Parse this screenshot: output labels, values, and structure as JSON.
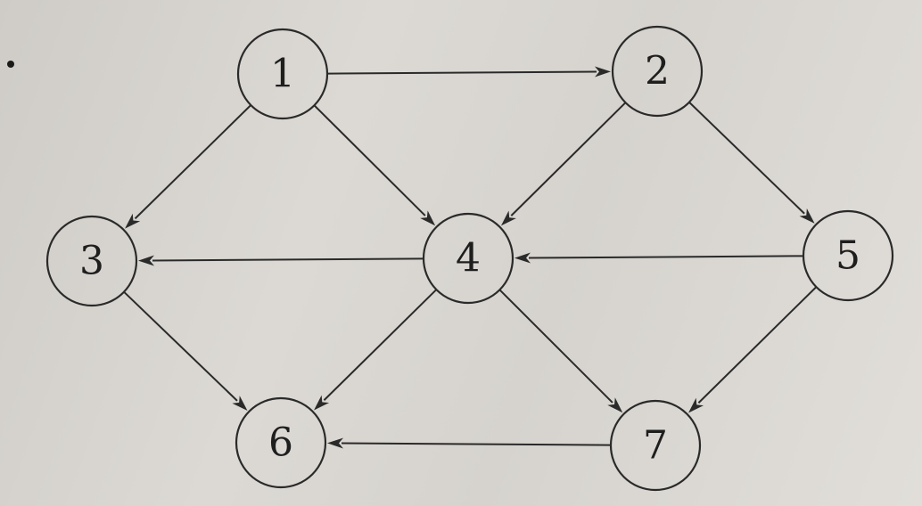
{
  "diagram": {
    "type": "directed-graph",
    "nodes": [
      {
        "id": "1",
        "label": "1"
      },
      {
        "id": "2",
        "label": "2"
      },
      {
        "id": "3",
        "label": "3"
      },
      {
        "id": "4",
        "label": "4"
      },
      {
        "id": "5",
        "label": "5"
      },
      {
        "id": "6",
        "label": "6"
      },
      {
        "id": "7",
        "label": "7"
      }
    ],
    "edges": [
      {
        "from": "1",
        "to": "2"
      },
      {
        "from": "1",
        "to": "3"
      },
      {
        "from": "1",
        "to": "4"
      },
      {
        "from": "2",
        "to": "4"
      },
      {
        "from": "2",
        "to": "5"
      },
      {
        "from": "4",
        "to": "3"
      },
      {
        "from": "5",
        "to": "4"
      },
      {
        "from": "3",
        "to": "6"
      },
      {
        "from": "4",
        "to": "6"
      },
      {
        "from": "4",
        "to": "7"
      },
      {
        "from": "5",
        "to": "7"
      },
      {
        "from": "7",
        "to": "6"
      }
    ]
  }
}
